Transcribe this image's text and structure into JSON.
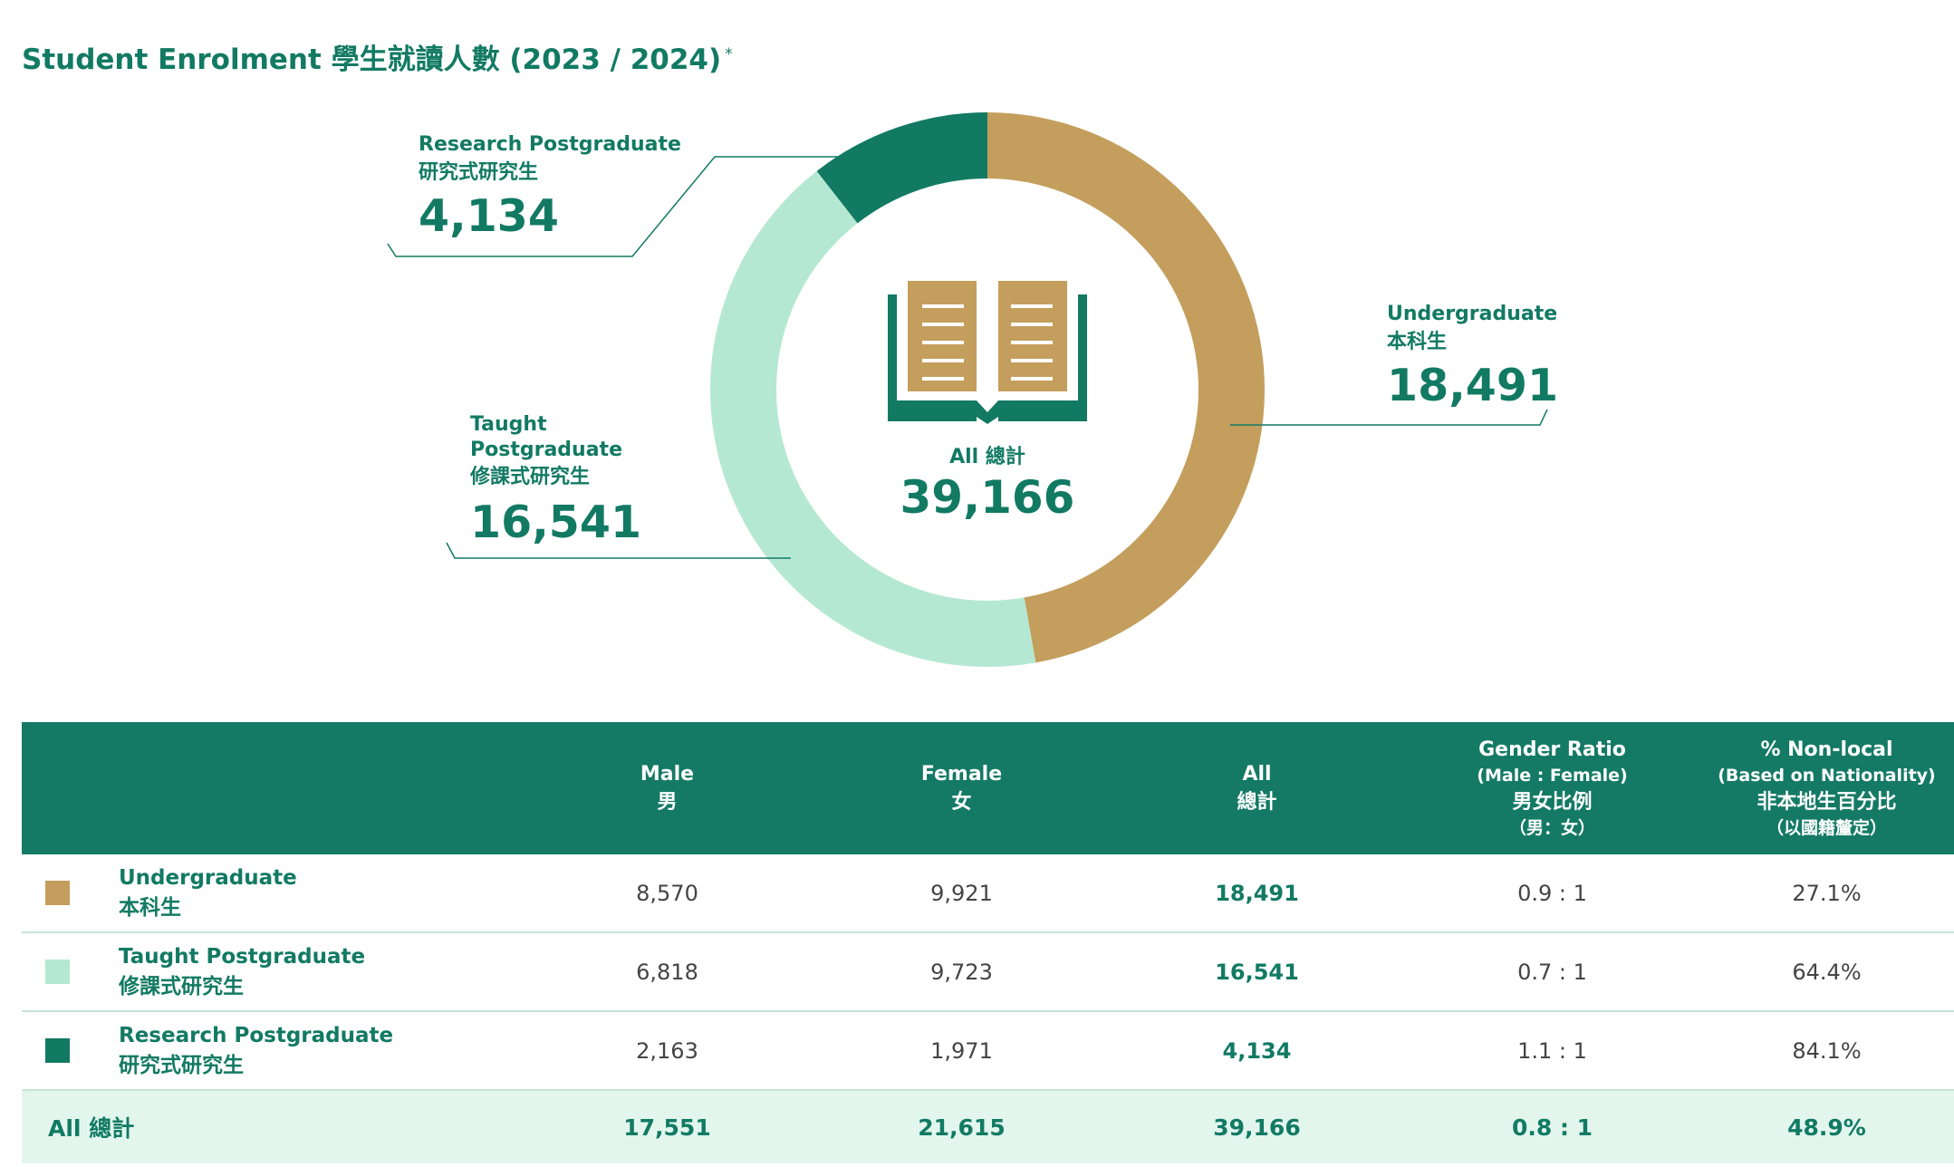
{
  "title": "Student Enrolment 學生就讀人數 (2023 / 2024)",
  "title_note": "*",
  "colors": {
    "undergraduate": "#c49e5d",
    "taught_postgraduate": "#b5e8d2",
    "research_postgraduate": "#127a63",
    "text": "#127a63",
    "header_bg": "#147a65",
    "total_row_bg": "#e2f6ee"
  },
  "chart_data": {
    "type": "pie",
    "variant": "donut",
    "center_label": "All 總計",
    "center_value": "39,166",
    "center_icon": "open-book-icon",
    "slices": [
      {
        "label_en": "Undergraduate",
        "label_zh": "本科生",
        "value": 18491,
        "display": "18,491",
        "color": "#c49e5d"
      },
      {
        "label_en": "Taught Postgraduate",
        "label_zh": "修課式研究生",
        "value": 16541,
        "display": "16,541",
        "color": "#b5e8d2"
      },
      {
        "label_en": "Research Postgraduate",
        "label_zh": "研究式研究生",
        "value": 4134,
        "display": "4,134",
        "color": "#127a63"
      }
    ]
  },
  "table": {
    "headers": [
      {
        "lines": [
          "Male",
          "男"
        ]
      },
      {
        "lines": [
          "Female",
          "女"
        ]
      },
      {
        "lines": [
          "All",
          "總計"
        ]
      },
      {
        "lines": [
          "Gender Ratio",
          "(Male : Female)",
          "男女比例",
          "（男：女）"
        ]
      },
      {
        "lines": [
          "% Non-local",
          "(Based on Nationality)",
          "非本地生百分比",
          "（以國籍釐定）"
        ]
      }
    ],
    "rows": [
      {
        "label_en": "Undergraduate",
        "label_zh": "本科生",
        "color": "#c49e5d",
        "male": "8,570",
        "female": "9,921",
        "all": "18,491",
        "ratio": "0.9 : 1",
        "nonlocal": "27.1%"
      },
      {
        "label_en": "Taught Postgraduate",
        "label_zh": "修課式研究生",
        "color": "#b5e8d2",
        "male": "6,818",
        "female": "9,723",
        "all": "16,541",
        "ratio": "0.7 : 1",
        "nonlocal": "64.4%"
      },
      {
        "label_en": "Research Postgraduate",
        "label_zh": "研究式研究生",
        "color": "#127a63",
        "male": "2,163",
        "female": "1,971",
        "all": "4,134",
        "ratio": "1.1 : 1",
        "nonlocal": "84.1%"
      }
    ],
    "total": {
      "label": "All 總計",
      "male": "17,551",
      "female": "21,615",
      "all": "39,166",
      "ratio": "0.8 : 1",
      "nonlocal": "48.9%"
    }
  }
}
